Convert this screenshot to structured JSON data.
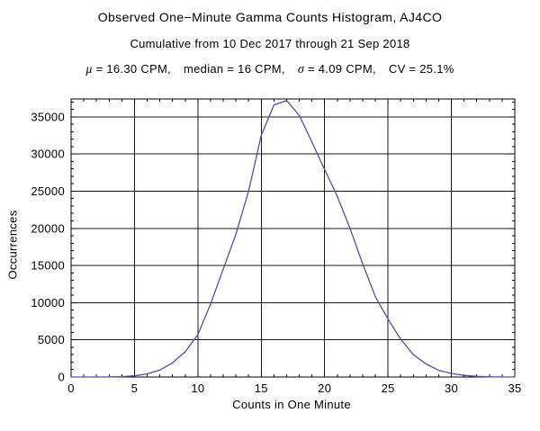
{
  "header": {
    "title": "Observed One−Minute Gamma Counts Histogram, AJ4CO",
    "subtitle": "Cumulative from 10 Dec 2017 through 21 Sep 2018",
    "stats": {
      "mu_symbol": "μ",
      "mu_text": " = 16.30 CPM,",
      "median_text": "median = 16 CPM,",
      "sigma_symbol": "σ",
      "sigma_text": " = 4.09 CPM,",
      "cv_text": "CV = 25.1%"
    }
  },
  "chart_data": {
    "type": "line",
    "title": "Observed One−Minute Gamma Counts Histogram, AJ4CO",
    "subtitle": "Cumulative from 10 Dec 2017 through 21 Sep 2018",
    "annotation": "μ = 16.30 CPM, median = 16 CPM, σ = 4.09 CPM, CV = 25.1%",
    "xlabel": "Counts in One Minute",
    "ylabel": "Occurrences",
    "xlim": [
      0,
      35
    ],
    "ylim": [
      0,
      37400
    ],
    "grid": true,
    "legend": "none",
    "x_major_ticks": [
      0,
      5,
      10,
      15,
      20,
      25,
      30,
      35
    ],
    "x_minor_step": 1,
    "y_major_ticks": [
      0,
      5000,
      10000,
      15000,
      20000,
      25000,
      30000,
      35000
    ],
    "y_minor_step": 1000,
    "frame_color": "#000000",
    "grid_color": "#1a1a1a",
    "series": [
      {
        "name": "one-minute-count-occurrences",
        "color": "#4f51a3",
        "x": [
          0,
          1,
          2,
          3,
          4,
          5,
          6,
          7,
          8,
          9,
          10,
          11,
          12,
          13,
          14,
          15,
          16,
          17,
          18,
          19,
          20,
          21,
          22,
          23,
          24,
          25,
          26,
          27,
          28,
          29,
          30,
          31,
          32,
          33,
          34,
          35
        ],
        "values": [
          0,
          0,
          5,
          15,
          50,
          160,
          420,
          950,
          1900,
          3400,
          5700,
          9800,
          14500,
          19200,
          25000,
          32500,
          36600,
          37200,
          35200,
          31600,
          27900,
          24300,
          20000,
          15200,
          10800,
          7800,
          5100,
          3000,
          1750,
          900,
          480,
          220,
          90,
          30,
          10,
          5
        ]
      }
    ]
  }
}
